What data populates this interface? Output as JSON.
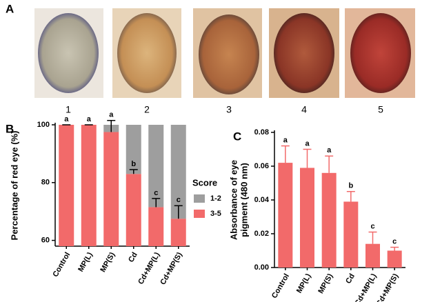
{
  "panel_a": {
    "label": "A",
    "images": [
      {
        "label": "1"
      },
      {
        "label": "2"
      },
      {
        "label": "3"
      },
      {
        "label": "4"
      },
      {
        "label": "5"
      }
    ]
  },
  "chart_data": [
    {
      "type": "bar",
      "panel_label": "B",
      "y_label": "Percentage of red eye (%)",
      "categories": [
        "Control",
        "MP(L)",
        "MP(S)",
        "Cd",
        "Cd+MP(L)",
        "Cd+MP(S)"
      ],
      "ylim": [
        58,
        100
      ],
      "yticks": [
        60,
        80,
        100
      ],
      "legend_title": "Score",
      "legend": "right",
      "series": [
        {
          "name": "1-2",
          "color": "#9e9e9e",
          "values": [
            0,
            0,
            2.5,
            17,
            28.5,
            32.5
          ]
        },
        {
          "name": "3-5",
          "color": "#f26a6a",
          "values": [
            100,
            100,
            97.5,
            83,
            71.5,
            67.5
          ],
          "errors": [
            0,
            0,
            4,
            1.5,
            3,
            4.5
          ],
          "letters": [
            "a",
            "a",
            "a",
            "b",
            "c",
            "c"
          ]
        }
      ]
    },
    {
      "type": "bar",
      "panel_label": "C",
      "y_label": [
        "Absorbance of eye",
        "pigment (480 nm)"
      ],
      "categories": [
        "Control",
        "MP(L)",
        "MP(S)",
        "Cd",
        "Cd+MP(L)",
        "Cd+MP(S)"
      ],
      "color": "#f26a6a",
      "values": [
        0.062,
        0.059,
        0.056,
        0.039,
        0.014,
        0.01
      ],
      "errors": [
        0.01,
        0.011,
        0.01,
        0.006,
        0.007,
        0.002
      ],
      "letters": [
        "a",
        "a",
        "a",
        "b",
        "c",
        "c"
      ],
      "ylim": [
        0,
        0.08
      ],
      "yticks": [
        {
          "value": 0,
          "label": "0.00"
        },
        0.02,
        0.04,
        0.06,
        0.08
      ]
    }
  ]
}
